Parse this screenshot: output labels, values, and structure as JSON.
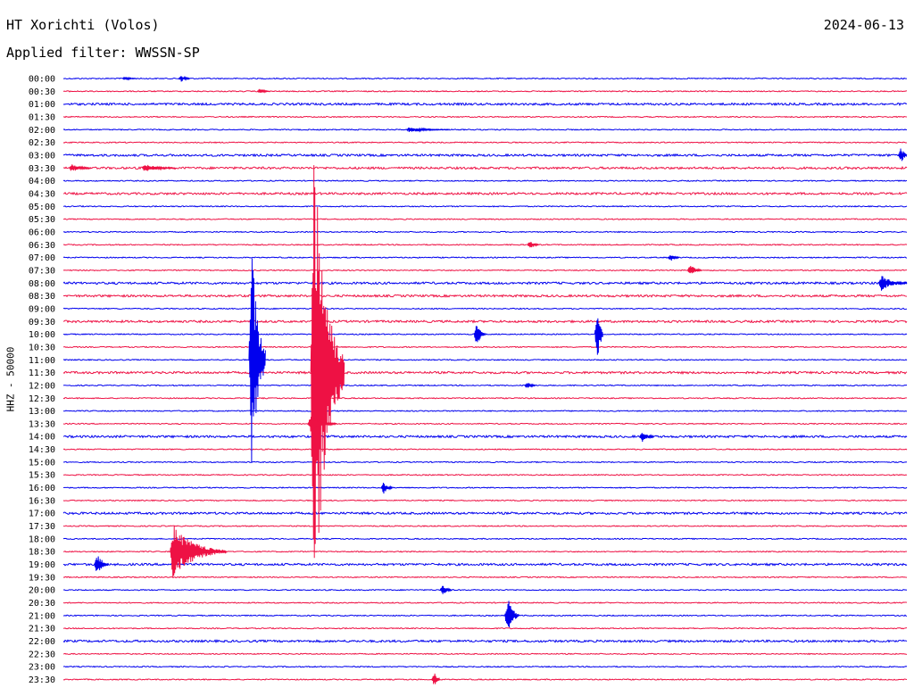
{
  "header": {
    "station": "HT Xorichti (Volos)",
    "date": "2024-06-13",
    "filter_prefix": "Applied filter: ",
    "filter": "WWSSN-SP"
  },
  "channel_label": "HHZ - 50000",
  "colors": {
    "trace_a": "#0000ee",
    "trace_b": "#ee1144",
    "text": "#000000",
    "background": "#ffffff"
  },
  "chart_data": {
    "type": "line",
    "title": "HT Xorichti (Volos)",
    "subtitle": "Applied filter: WWSSN-SP",
    "ylabel": "HHZ - 50000",
    "xlabel": "",
    "grid": false,
    "traces_per_row_minutes": 30,
    "x_range_minutes": [
      0,
      30
    ],
    "row_labels": [
      "00:00",
      "00:30",
      "01:00",
      "01:30",
      "02:00",
      "02:30",
      "03:00",
      "03:30",
      "04:00",
      "04:30",
      "05:00",
      "05:30",
      "06:00",
      "06:30",
      "07:00",
      "07:30",
      "08:00",
      "08:30",
      "09:00",
      "09:30",
      "10:00",
      "10:30",
      "11:00",
      "11:30",
      "12:00",
      "12:30",
      "13:00",
      "13:30",
      "14:00",
      "14:30",
      "15:00",
      "15:30",
      "16:00",
      "16:30",
      "17:00",
      "17:30",
      "18:00",
      "18:30",
      "19:00",
      "19:30",
      "20:00",
      "20:30",
      "21:00",
      "21:30",
      "22:00",
      "22:30",
      "23:00",
      "23:30"
    ],
    "row_colors": [
      "blue",
      "red"
    ],
    "noise_amplitude": [
      1,
      1,
      2,
      1,
      1,
      1,
      2,
      2,
      1,
      2,
      1,
      1,
      1,
      1,
      1,
      1,
      2,
      2,
      1,
      2,
      1,
      1,
      1,
      2,
      1,
      1,
      1,
      1,
      2,
      1,
      1,
      1,
      1,
      1,
      2,
      1,
      1,
      1,
      2,
      1,
      1,
      1,
      1,
      1,
      2,
      1,
      1,
      1
    ],
    "events": [
      {
        "row": 0,
        "minute": 2.1,
        "amplitude": 2,
        "duration_min": 0.5
      },
      {
        "row": 0,
        "minute": 4.1,
        "amplitude": 4,
        "duration_min": 0.4
      },
      {
        "row": 1,
        "minute": 6.9,
        "amplitude": 3,
        "duration_min": 0.4
      },
      {
        "row": 4,
        "minute": 12.2,
        "amplitude": 3,
        "duration_min": 1.5
      },
      {
        "row": 6,
        "minute": 29.7,
        "amplitude": 10,
        "duration_min": 0.3
      },
      {
        "row": 7,
        "minute": 0.2,
        "amplitude": 5,
        "duration_min": 0.8
      },
      {
        "row": 7,
        "minute": 2.8,
        "amplitude": 5,
        "duration_min": 1.2
      },
      {
        "row": 13,
        "minute": 16.5,
        "amplitude": 6,
        "duration_min": 0.4
      },
      {
        "row": 14,
        "minute": 21.5,
        "amplitude": 5,
        "duration_min": 0.4
      },
      {
        "row": 15,
        "minute": 22.2,
        "amplitude": 7,
        "duration_min": 0.5
      },
      {
        "row": 16,
        "minute": 29.0,
        "amplitude": 9,
        "duration_min": 1.0
      },
      {
        "row": 20,
        "minute": 14.6,
        "amplitude": 15,
        "duration_min": 0.4
      },
      {
        "row": 20,
        "minute": 18.9,
        "amplitude": 30,
        "duration_min": 0.3
      },
      {
        "row": 22,
        "minute": 6.6,
        "amplitude": 140,
        "duration_min": 0.6
      },
      {
        "row": 23,
        "minute": 8.8,
        "amplitude": 300,
        "duration_min": 1.2
      },
      {
        "row": 24,
        "minute": 16.4,
        "amplitude": 4,
        "duration_min": 0.4
      },
      {
        "row": 27,
        "minute": 8.7,
        "amplitude": 10,
        "duration_min": 1.0
      },
      {
        "row": 28,
        "minute": 20.5,
        "amplitude": 7,
        "duration_min": 0.5
      },
      {
        "row": 32,
        "minute": 11.3,
        "amplitude": 7,
        "duration_min": 0.4
      },
      {
        "row": 37,
        "minute": 3.8,
        "amplitude": 32,
        "duration_min": 2.0
      },
      {
        "row": 38,
        "minute": 1.1,
        "amplitude": 14,
        "duration_min": 0.5
      },
      {
        "row": 40,
        "minute": 13.4,
        "amplitude": 6,
        "duration_min": 0.4
      },
      {
        "row": 42,
        "minute": 15.7,
        "amplitude": 22,
        "duration_min": 0.5
      },
      {
        "row": 47,
        "minute": 13.1,
        "amplitude": 8,
        "duration_min": 0.3
      }
    ]
  }
}
